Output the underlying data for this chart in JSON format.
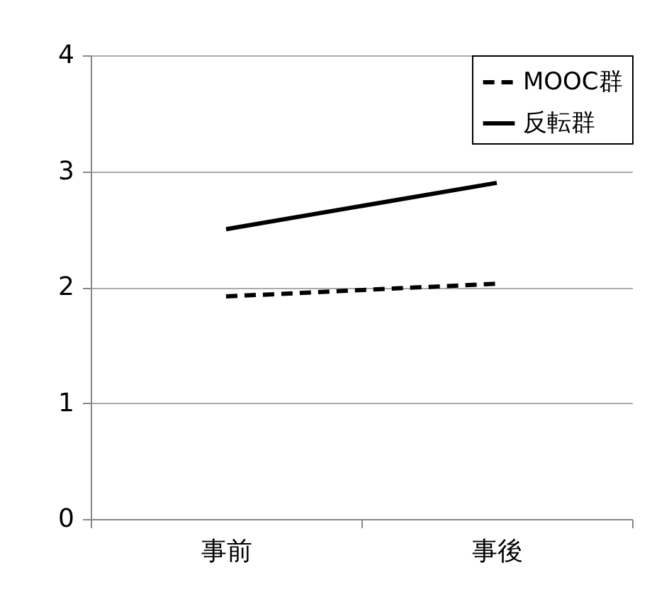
{
  "chart_data": {
    "type": "line",
    "categories": [
      "事前",
      "事後"
    ],
    "series": [
      {
        "name": "MOOC群",
        "color": "#000000",
        "line_style": "dashed",
        "values": [
          1.92,
          2.03
        ]
      },
      {
        "name": "反転群",
        "color": "#000000",
        "line_style": "solid",
        "values": [
          2.5,
          2.9
        ]
      }
    ],
    "ylim": [
      0,
      4
    ],
    "yticks": [
      0,
      1,
      2,
      3,
      4
    ],
    "grid": "y",
    "legend": "top right",
    "marker": "none"
  }
}
